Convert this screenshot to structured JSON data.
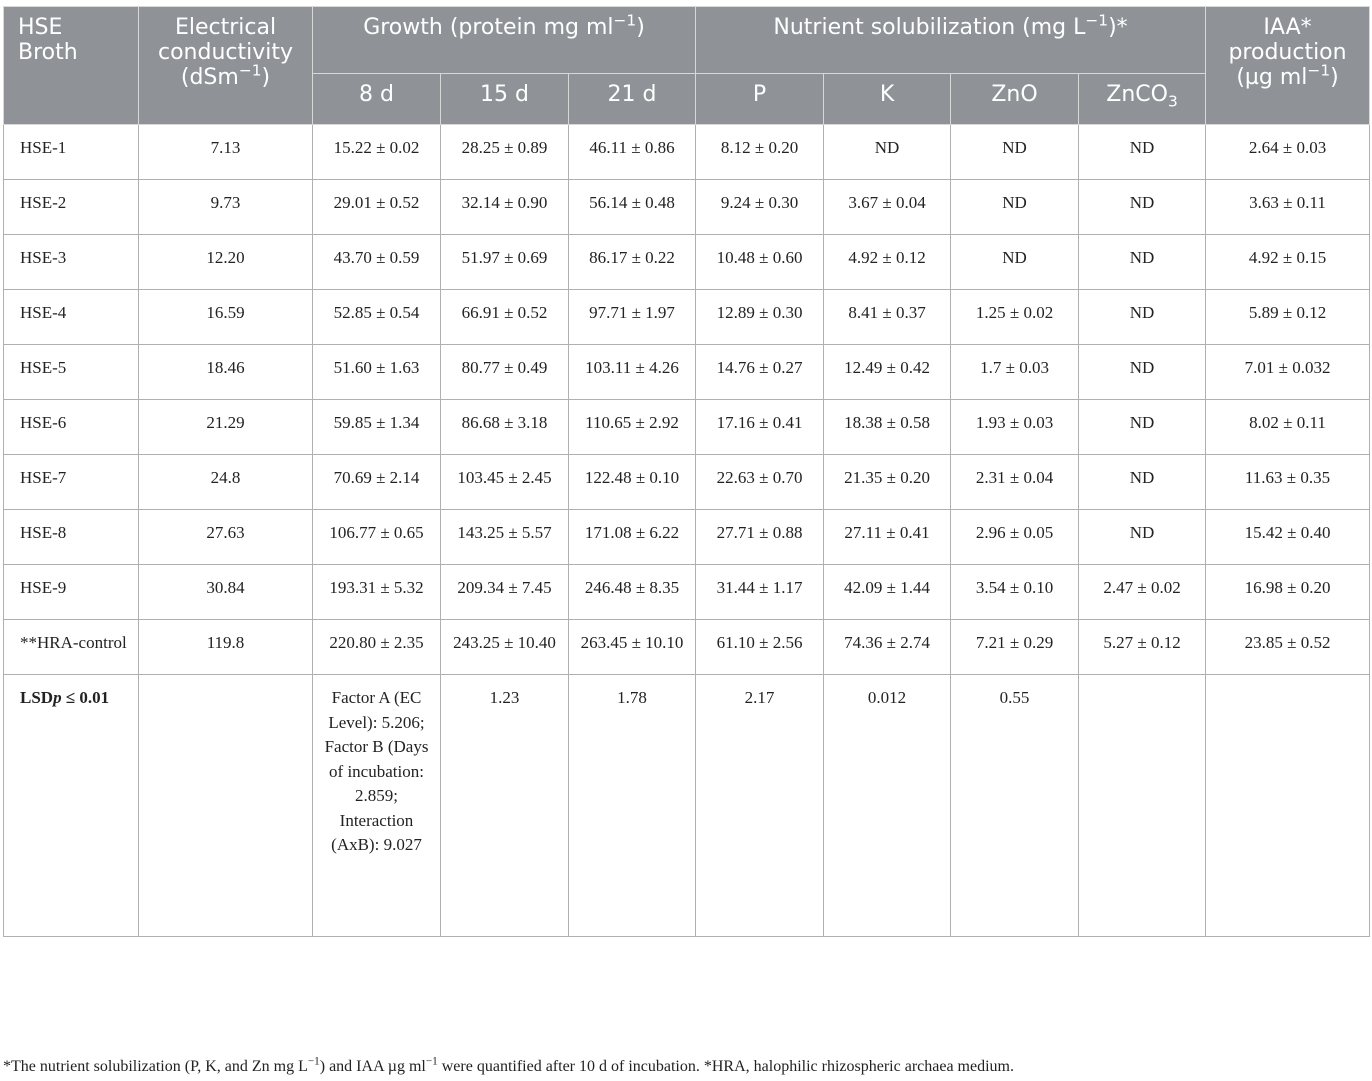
{
  "header": {
    "col_sample": "HSE Broth",
    "col_ec": "Electrical conductivity",
    "col_ec_unit": "(dSm",
    "col_ec_unit_exp": "−1",
    "col_ec_unit_end": ")",
    "col_growth": "Growth (protein mg ml",
    "col_growth_exp": "−1",
    "col_growth_end": ")",
    "col_nutrient": "Nutrient solubilization (mg L",
    "col_nutrient_exp": "−1",
    "col_nutrient_end": ")*",
    "col_iaa": "IAA* production",
    "col_iaa_unit": "(µg ml",
    "col_iaa_unit_exp": "−1",
    "col_iaa_unit_end": ")",
    "sub_8d": "8 d",
    "sub_15d": "15 d",
    "sub_21d": "21 d",
    "sub_p": "P",
    "sub_k": "K",
    "sub_zno": "ZnO",
    "sub_znco3": "ZnCO",
    "sub_znco3_sub": "3"
  },
  "rows": [
    {
      "name": "HSE-1",
      "ec": "7.13",
      "d8": "15.22 ± 0.02",
      "d15": "28.25 ± 0.89",
      "d21": "46.11 ± 0.86",
      "p": "8.12 ± 0.20",
      "k": "ND",
      "zno": "ND",
      "znco3": "ND",
      "iaa": "2.64 ± 0.03"
    },
    {
      "name": "HSE-2",
      "ec": "9.73",
      "d8": "29.01 ± 0.52",
      "d15": "32.14 ± 0.90",
      "d21": "56.14 ± 0.48",
      "p": "9.24 ± 0.30",
      "k": "3.67 ± 0.04",
      "zno": "ND",
      "znco3": "ND",
      "iaa": "3.63 ± 0.11"
    },
    {
      "name": "HSE-3",
      "ec": "12.20",
      "d8": "43.70 ± 0.59",
      "d15": "51.97 ± 0.69",
      "d21": "86.17 ± 0.22",
      "p": "10.48 ± 0.60",
      "k": "4.92 ± 0.12",
      "zno": "ND",
      "znco3": "ND",
      "iaa": "4.92 ± 0.15"
    },
    {
      "name": "HSE-4",
      "ec": "16.59",
      "d8": "52.85 ± 0.54",
      "d15": "66.91 ± 0.52",
      "d21": "97.71 ± 1.97",
      "p": "12.89 ± 0.30",
      "k": "8.41 ± 0.37",
      "zno": "1.25 ± 0.02",
      "znco3": "ND",
      "iaa": "5.89 ± 0.12"
    },
    {
      "name": "HSE-5",
      "ec": "18.46",
      "d8": "51.60 ± 1.63",
      "d15": "80.77 ± 0.49",
      "d21": "103.11 ± 4.26",
      "p": "14.76 ± 0.27",
      "k": "12.49 ± 0.42",
      "zno": "1.7 ± 0.03",
      "znco3": "ND",
      "iaa": "7.01 ± 0.032"
    },
    {
      "name": "HSE-6",
      "ec": "21.29",
      "d8": "59.85 ± 1.34",
      "d15": "86.68 ± 3.18",
      "d21": "110.65 ± 2.92",
      "p": "17.16 ± 0.41",
      "k": "18.38 ± 0.58",
      "zno": "1.93 ± 0.03",
      "znco3": "ND",
      "iaa": "8.02 ± 0.11"
    },
    {
      "name": "HSE-7",
      "ec": "24.8",
      "d8": "70.69 ± 2.14",
      "d15": "103.45 ± 2.45",
      "d21": "122.48 ± 0.10",
      "p": "22.63 ± 0.70",
      "k": "21.35 ± 0.20",
      "zno": "2.31 ± 0.04",
      "znco3": "ND",
      "iaa": "11.63 ± 0.35"
    },
    {
      "name": "HSE-8",
      "ec": "27.63",
      "d8": "106.77 ± 0.65",
      "d15": "143.25 ± 5.57",
      "d21": "171.08 ± 6.22",
      "p": "27.71 ± 0.88",
      "k": "27.11 ± 0.41",
      "zno": "2.96 ± 0.05",
      "znco3": "ND",
      "iaa": "15.42 ± 0.40"
    },
    {
      "name": "HSE-9",
      "ec": "30.84",
      "d8": "193.31 ± 5.32",
      "d15": "209.34 ± 7.45",
      "d21": "246.48 ± 8.35",
      "p": "31.44 ± 1.17",
      "k": "42.09 ± 1.44",
      "zno": "3.54 ± 0.10",
      "znco3": "2.47 ± 0.02",
      "iaa": "16.98 ± 0.20"
    },
    {
      "name": "**HRA-control",
      "ec": "119.8",
      "d8": "220.80 ± 2.35",
      "d15": "243.25 ± 10.40",
      "d21": "263.45 ± 10.10",
      "p": "61.10 ± 2.56",
      "k": "74.36 ± 2.74",
      "zno": "7.21 ± 0.29",
      "znco3": "5.27 ± 0.12",
      "iaa": "23.85 ± 0.52"
    }
  ],
  "lsd": {
    "label_pre": "LSD",
    "label_p": "p",
    "label_post": " ≤ 0.01",
    "d8": "Factor A (EC Level): 5.206; Factor B (Days of incubation: 2.859; Interaction (AxB): 9.027",
    "d15": "1.23",
    "d21": "1.78",
    "p": "2.17",
    "k": "0.012",
    "zno": "0.55"
  },
  "footnote": {
    "a": "*The nutrient solubilization (P, K, and Zn mg L",
    "a_exp": "−1",
    "b": ") and IAA µg ml",
    "b_exp": "−1",
    "c": " were quantified after 10 d of incubation. *HRA, halophilic rhizospheric archaea medium."
  }
}
